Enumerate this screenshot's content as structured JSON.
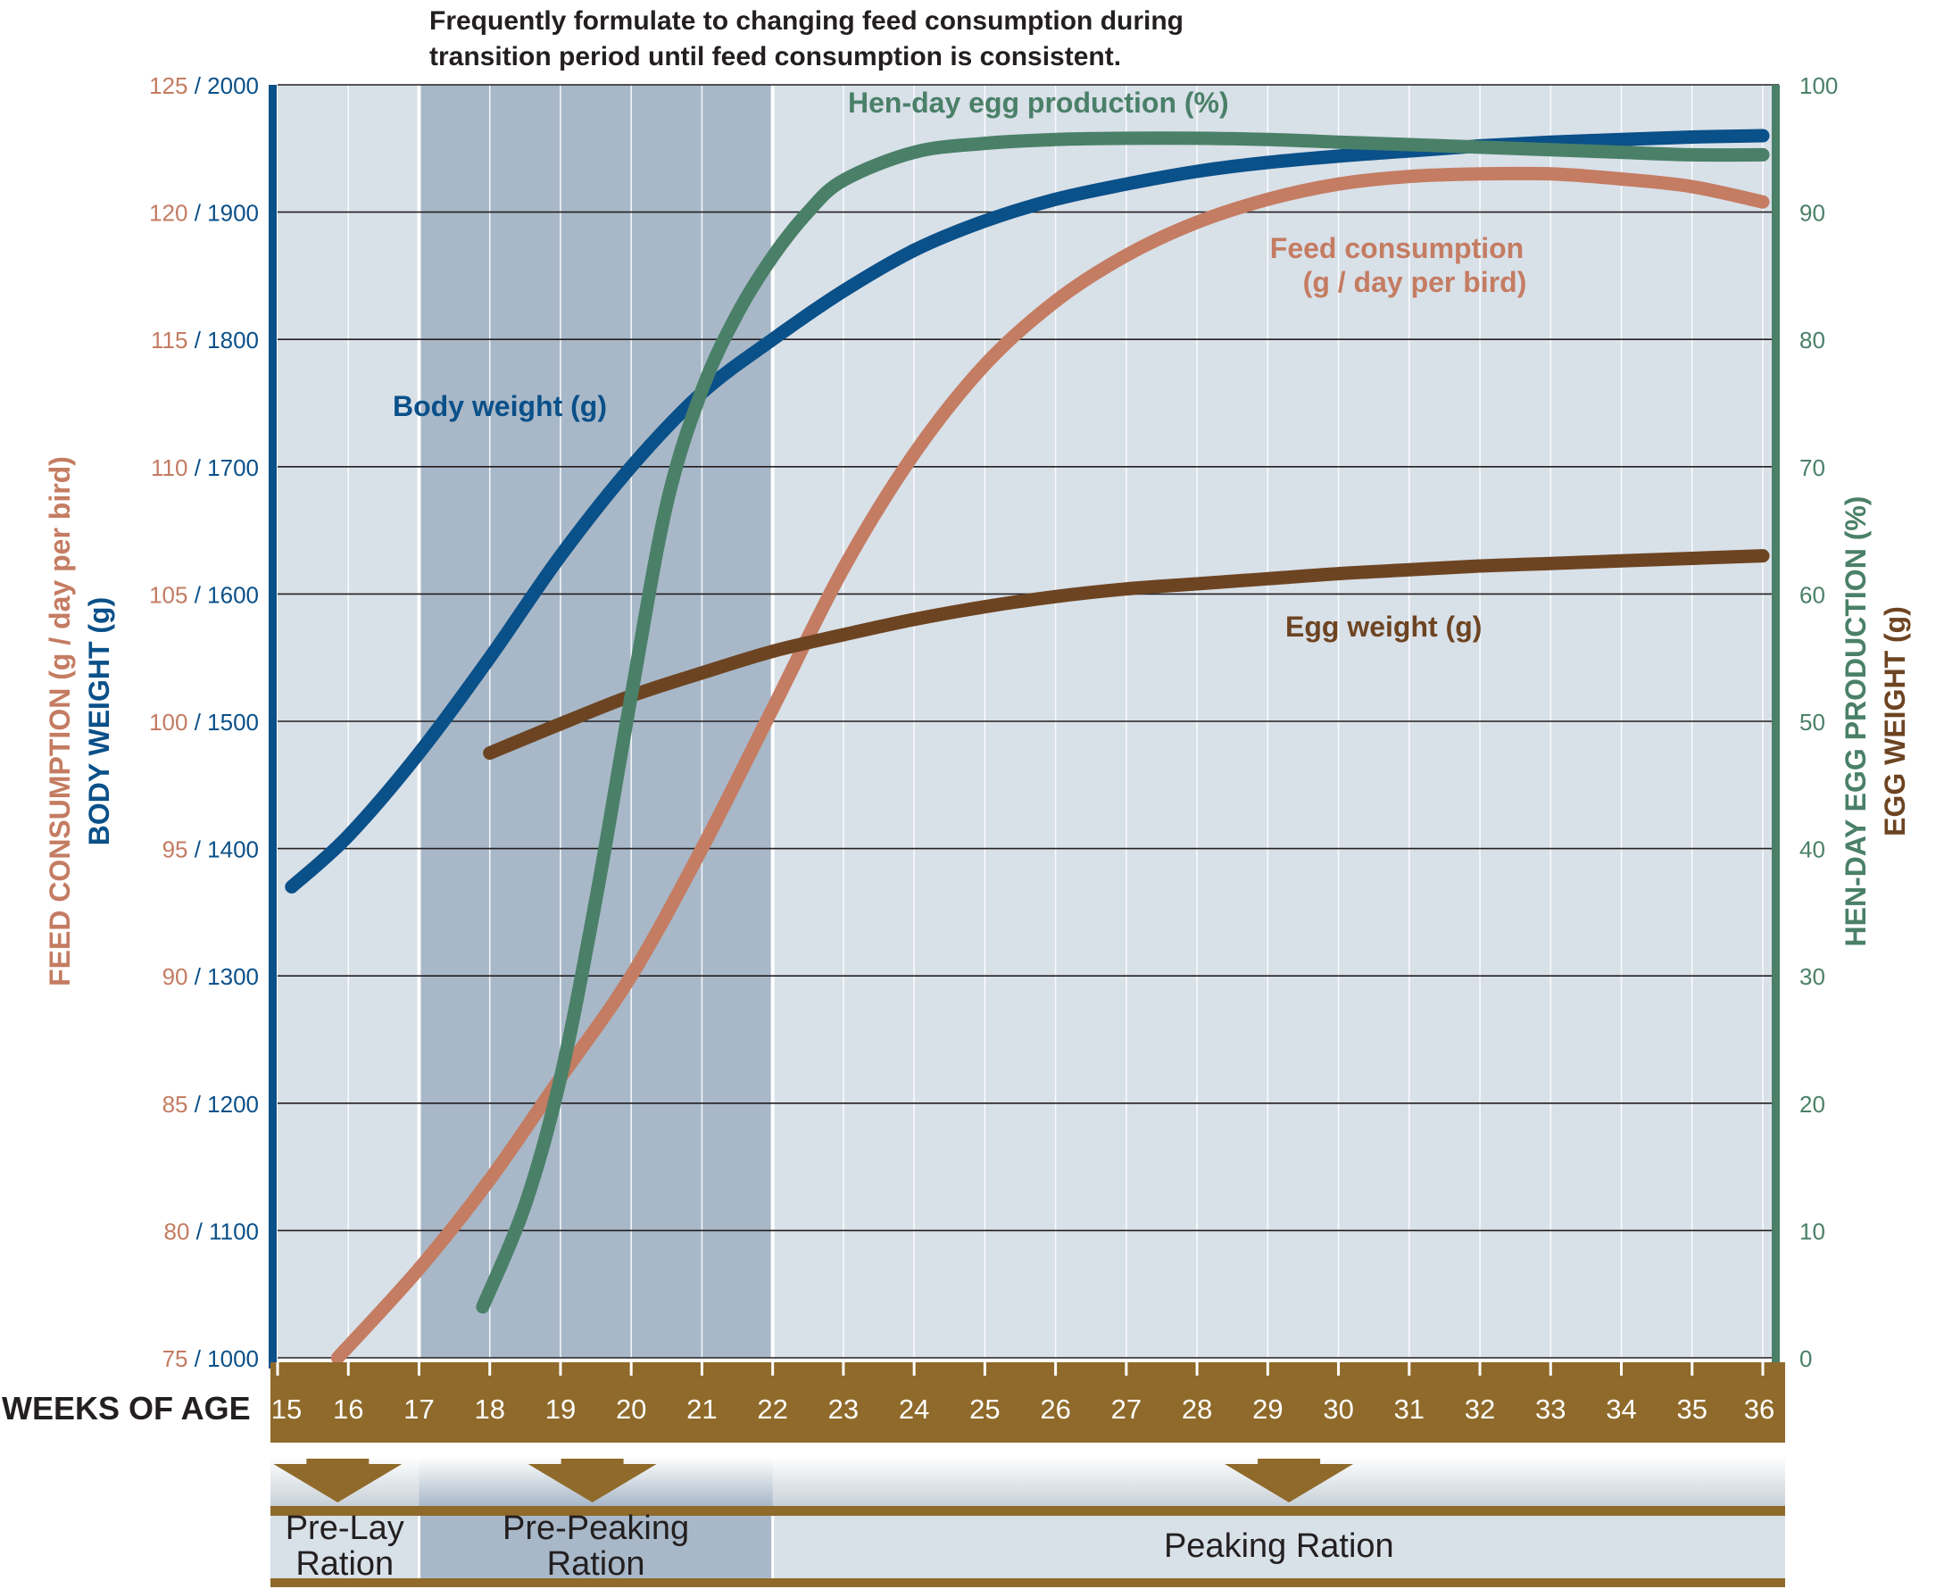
{
  "annotation_lines": [
    "Frequently formulate to changing feed consumption during",
    "transition period until feed consumption is consistent."
  ],
  "colors": {
    "feed": "#c47c62",
    "body": "#0a5089",
    "hen": "#4a8068",
    "egg": "#6d4422",
    "axis_band": "#8f6a2a",
    "panel": "#d8e0e8",
    "shade": "#a8b8c8"
  },
  "left_axis": {
    "title_feed": "FEED CONSUMPTION (g / day per bird)",
    "title_body": "BODY WEIGHT (g)",
    "ticks": [
      {
        "feed": "75",
        "body": "1000"
      },
      {
        "feed": "80",
        "body": "1100"
      },
      {
        "feed": "85",
        "body": "1200"
      },
      {
        "feed": "90",
        "body": "1300"
      },
      {
        "feed": "95",
        "body": "1400"
      },
      {
        "feed": "100",
        "body": "1500"
      },
      {
        "feed": "105",
        "body": "1600"
      },
      {
        "feed": "110",
        "body": "1700"
      },
      {
        "feed": "115",
        "body": "1800"
      },
      {
        "feed": "120",
        "body": "1900"
      },
      {
        "feed": "125",
        "body": "2000"
      }
    ]
  },
  "right_axis": {
    "title_hen": "HEN-DAY EGG PRODUCTION (%)",
    "title_egg": "EGG WEIGHT (g)",
    "ticks": [
      "0",
      "10",
      "20",
      "30",
      "40",
      "50",
      "60",
      "70",
      "80",
      "90",
      "100"
    ]
  },
  "x_axis": {
    "label": "WEEKS OF AGE",
    "ticks": [
      "15",
      "16",
      "17",
      "18",
      "19",
      "20",
      "21",
      "22",
      "23",
      "24",
      "25",
      "26",
      "27",
      "28",
      "29",
      "30",
      "31",
      "32",
      "33",
      "34",
      "35",
      "36"
    ]
  },
  "rations": [
    "Pre-Lay|Ration",
    "Pre-Peaking|Ration",
    "Peaking Ration"
  ],
  "chart_data": {
    "type": "line",
    "xlabel": "WEEKS OF AGE",
    "x_range": [
      15,
      36.3
    ],
    "y_left": {
      "feed_range": [
        75,
        125
      ],
      "body_range": [
        1000,
        2000
      ]
    },
    "y_right": {
      "hen_range": [
        0,
        100
      ]
    },
    "shaded_regions": [
      {
        "from": 17,
        "to": 22,
        "label": "Pre-Peaking Ration"
      }
    ],
    "ration_periods": [
      {
        "label": "Pre-Lay Ration",
        "from": 15,
        "to": 17
      },
      {
        "label": "Pre-Peaking Ration",
        "from": 17,
        "to": 22
      },
      {
        "label": "Peaking Ration",
        "from": 22,
        "to": 36.3
      }
    ],
    "series": [
      {
        "name": "Body weight (g)",
        "axis": "left-body",
        "color": "#0a5089",
        "x": [
          15.2,
          16,
          17,
          18,
          19,
          20,
          21,
          22,
          23,
          24,
          25,
          26,
          27,
          28,
          29,
          30,
          31,
          32,
          33,
          34,
          35,
          36
        ],
        "y": [
          1370,
          1410,
          1475,
          1550,
          1630,
          1700,
          1758,
          1800,
          1838,
          1870,
          1893,
          1910,
          1922,
          1932,
          1939,
          1944,
          1948,
          1952,
          1955,
          1957,
          1959,
          1960
        ]
      },
      {
        "name": "Feed consumption (g / day per bird)",
        "axis": "left-feed",
        "color": "#c47c62",
        "x": [
          15.85,
          17,
          18,
          19,
          20,
          21,
          22,
          23,
          24,
          25,
          26,
          27,
          28,
          29,
          30,
          31,
          32,
          33,
          34,
          35,
          36
        ],
        "y": [
          75,
          78.5,
          82,
          86,
          90,
          95,
          100.5,
          106,
          110.5,
          114,
          116.5,
          118.3,
          119.6,
          120.5,
          121.1,
          121.4,
          121.5,
          121.5,
          121.3,
          121,
          120.4
        ]
      },
      {
        "name": "Hen-day egg production (%)",
        "axis": "right",
        "color": "#4a8068",
        "x": [
          17.9,
          18.5,
          19,
          19.5,
          20,
          20.5,
          21,
          21.5,
          22,
          22.5,
          23,
          24,
          25,
          26,
          27,
          28,
          29,
          30,
          31,
          32,
          33,
          34,
          35,
          36
        ],
        "y": [
          4,
          12,
          22,
          36,
          52,
          67,
          76,
          82,
          86.5,
          90,
          92.5,
          94.7,
          95.4,
          95.7,
          95.8,
          95.8,
          95.7,
          95.5,
          95.3,
          95.1,
          94.9,
          94.7,
          94.5,
          94.5
        ]
      },
      {
        "name": "Egg weight (g)",
        "axis": "right",
        "color": "#6d4422",
        "x": [
          18,
          19,
          20,
          21,
          22,
          23,
          24,
          25,
          26,
          27,
          28,
          29,
          30,
          31,
          32,
          33,
          34,
          35,
          36
        ],
        "y": [
          47.5,
          49.8,
          52,
          53.8,
          55.5,
          56.8,
          58,
          59,
          59.8,
          60.4,
          60.8,
          61.2,
          61.6,
          61.9,
          62.2,
          62.4,
          62.6,
          62.8,
          63
        ]
      }
    ],
    "series_labels": [
      "Hen-day egg production (%)",
      "Body weight (g)",
      "Feed consumption|(g / day per bird)",
      "Egg weight (g)"
    ]
  }
}
